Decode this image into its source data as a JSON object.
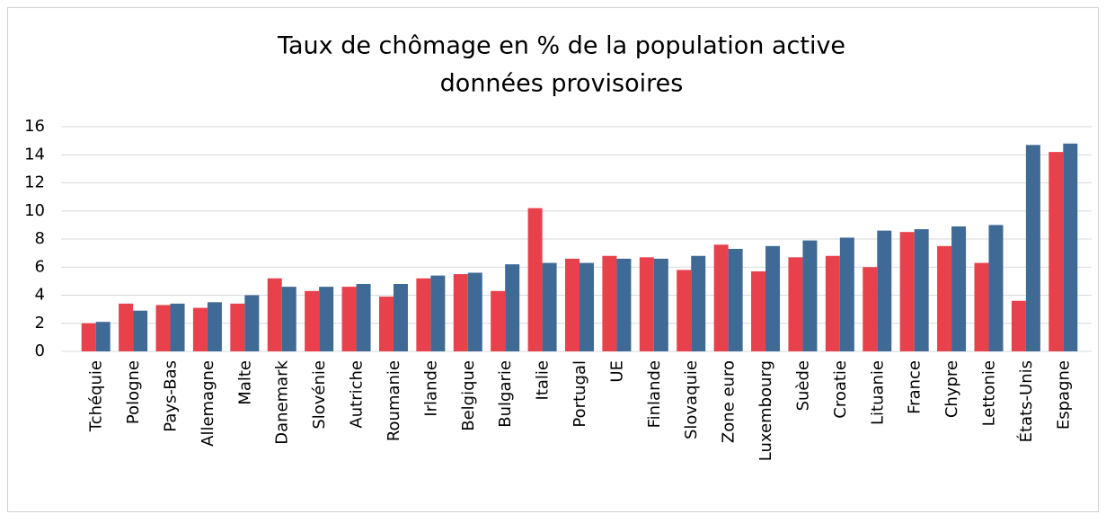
{
  "chart_data": {
    "type": "bar",
    "title": [
      "Taux de chômage en % de la population active",
      "données provisoires"
    ],
    "categories": [
      "Tchéquie",
      "Pologne",
      "Pays-Bas",
      "Allemagne",
      "Malte",
      "Danemark",
      "Slovénie",
      "Autriche",
      "Roumanie",
      "Irlande",
      "Belgique",
      "Bulgarie",
      "Italie",
      "Portugal",
      "UE",
      "Finlande",
      "Slovaquie",
      "Zone euro",
      "Luxembourg",
      "Suède",
      "Croatie",
      "Lituanie",
      "France",
      "Chypre",
      "Lettonie",
      "États-Unis",
      "Espagne"
    ],
    "series": [
      {
        "color": "#e8414b",
        "values": [
          2.0,
          3.4,
          3.3,
          3.1,
          3.4,
          5.2,
          4.3,
          4.6,
          3.9,
          5.2,
          5.5,
          4.3,
          10.2,
          6.6,
          6.8,
          6.7,
          5.8,
          7.6,
          5.7,
          6.7,
          6.8,
          6.0,
          8.5,
          7.5,
          6.3,
          3.6,
          14.2
        ]
      },
      {
        "color": "#3f6a96",
        "values": [
          2.1,
          2.9,
          3.4,
          3.5,
          4.0,
          4.6,
          4.6,
          4.8,
          4.8,
          5.4,
          5.6,
          6.2,
          6.3,
          6.3,
          6.6,
          6.6,
          6.8,
          7.3,
          7.5,
          7.9,
          8.1,
          8.6,
          8.7,
          8.9,
          9.0,
          14.7,
          14.8
        ]
      }
    ],
    "ylim": [
      0,
      16
    ],
    "yticks": [
      0,
      2,
      4,
      6,
      8,
      10,
      12,
      14,
      16
    ],
    "grid": true
  }
}
